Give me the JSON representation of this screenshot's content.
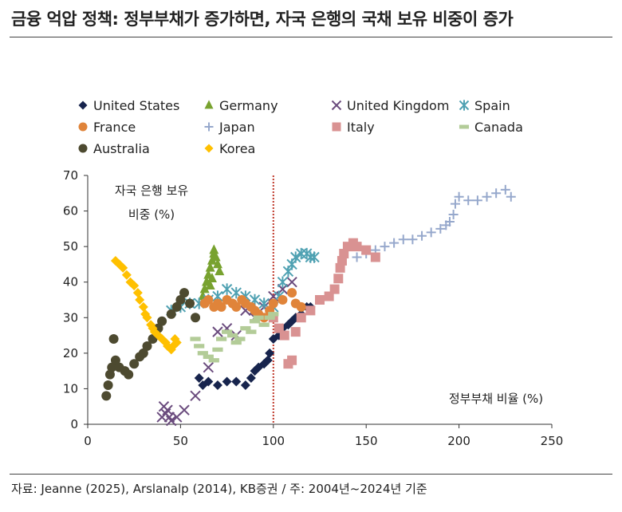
{
  "title": "금융 억압 정책: 정부부채가 증가하면, 자국 은행의 국채 보유 비중이 증가",
  "source": "자료: Jeanne (2025), Arslanalp (2014), KB증권 / 주: 2004년~2024년 기준",
  "chart_data": {
    "type": "scatter",
    "title": "금융 억압 정책: 정부부채가 증가하면, 자국 은행의 국채 보유 비중이 증가",
    "xlabel": "정부부채 비율 (%)",
    "ylabel": "자국 은행 보유 비중 (%)",
    "xlim": [
      0,
      250
    ],
    "ylim": [
      0,
      70
    ],
    "xticks": [
      0,
      50,
      100,
      150,
      200,
      250
    ],
    "yticks": [
      0,
      10,
      20,
      30,
      40,
      50,
      60,
      70
    ],
    "reference_line": {
      "x": 100,
      "color": "#c0392b",
      "style": "dotted"
    },
    "legend_placement": "top",
    "series": [
      {
        "name": "United States",
        "marker": "diamond",
        "color": "#17244d",
        "x": [
          60,
          62,
          65,
          70,
          75,
          80,
          85,
          88,
          90,
          92,
          95,
          97,
          98,
          100,
          103,
          105,
          108,
          110,
          112,
          115,
          118,
          120
        ],
        "y": [
          13,
          11,
          12,
          11,
          12,
          12,
          11,
          13,
          15,
          16,
          17,
          18,
          20,
          24,
          25,
          27,
          28,
          29,
          30,
          31,
          33,
          33
        ]
      },
      {
        "name": "Germany",
        "marker": "triangle",
        "color": "#78a22f",
        "x": [
          62,
          63,
          64,
          65,
          66,
          67,
          68,
          68,
          69,
          70,
          71,
          67,
          66
        ],
        "y": [
          36,
          38,
          40,
          42,
          44,
          46,
          48,
          49,
          47,
          45,
          43,
          41,
          39
        ]
      },
      {
        "name": "United Kingdom",
        "marker": "x",
        "color": "#6b4c7e",
        "x": [
          40,
          41,
          42,
          43,
          44,
          45,
          48,
          52,
          58,
          65,
          70,
          75,
          80,
          85,
          90,
          95,
          100,
          105,
          110
        ],
        "y": [
          2,
          5,
          3,
          4,
          2,
          1,
          2,
          4,
          8,
          16,
          26,
          27,
          25,
          32,
          30,
          33,
          36,
          38,
          40
        ]
      },
      {
        "name": "Spain",
        "marker": "asterisk",
        "color": "#4fa1b2",
        "x": [
          45,
          50,
          55,
          60,
          65,
          70,
          75,
          80,
          85,
          90,
          95,
          100,
          103,
          105,
          108,
          110,
          112,
          115,
          118,
          120,
          122
        ],
        "y": [
          32,
          33,
          34,
          34,
          35,
          36,
          38,
          37,
          36,
          35,
          34,
          33,
          36,
          40,
          43,
          45,
          47,
          48,
          48,
          47,
          47
        ]
      },
      {
        "name": "France",
        "marker": "circle",
        "color": "#e0843a",
        "x": [
          63,
          65,
          68,
          70,
          72,
          75,
          78,
          80,
          83,
          85,
          88,
          90,
          92,
          95,
          98,
          100,
          105,
          110,
          112,
          115
        ],
        "y": [
          34,
          35,
          33,
          34,
          33,
          35,
          34,
          33,
          35,
          34,
          33,
          32,
          31,
          30,
          32,
          34,
          35,
          37,
          34,
          33
        ]
      },
      {
        "name": "Japan",
        "marker": "plus",
        "color": "#96a8cc",
        "x": [
          145,
          150,
          155,
          160,
          165,
          170,
          175,
          180,
          185,
          190,
          193,
          195,
          197,
          198,
          200,
          205,
          210,
          215,
          220,
          225,
          228
        ],
        "y": [
          47,
          48,
          49,
          50,
          51,
          52,
          52,
          53,
          54,
          55,
          56,
          57,
          59,
          62,
          64,
          63,
          63,
          64,
          65,
          66,
          64
        ]
      },
      {
        "name": "Italy",
        "marker": "square",
        "color": "#d99292",
        "x": [
          100,
          103,
          106,
          108,
          110,
          112,
          115,
          120,
          125,
          130,
          133,
          135,
          136,
          137,
          138,
          140,
          143,
          145,
          150,
          155
        ],
        "y": [
          30,
          27,
          25,
          17,
          18,
          26,
          30,
          32,
          35,
          36,
          38,
          41,
          44,
          46,
          48,
          50,
          51,
          50,
          49,
          47
        ]
      },
      {
        "name": "Canada",
        "marker": "dash",
        "color": "#b3cc98",
        "x": [
          58,
          60,
          62,
          65,
          68,
          70,
          72,
          75,
          78,
          80,
          82,
          85,
          88,
          90,
          92,
          95,
          98,
          100
        ],
        "y": [
          24,
          22,
          20,
          19,
          18,
          21,
          24,
          26,
          25,
          23,
          24,
          27,
          26,
          29,
          30,
          28,
          30,
          31
        ]
      },
      {
        "name": "Australia",
        "marker": "circle",
        "color": "#4d4a30",
        "x": [
          10,
          11,
          12,
          13,
          14,
          15,
          17,
          20,
          22,
          25,
          28,
          30,
          32,
          35,
          38,
          40,
          45,
          48,
          50,
          52,
          55,
          58
        ],
        "y": [
          8,
          11,
          14,
          16,
          24,
          18,
          16,
          15,
          14,
          17,
          19,
          20,
          22,
          24,
          27,
          29,
          31,
          33,
          35,
          37,
          34,
          30
        ]
      },
      {
        "name": "Korea",
        "marker": "diamond",
        "color": "#ffc000",
        "x": [
          15,
          17,
          19,
          21,
          23,
          25,
          27,
          28,
          30,
          31,
          32,
          34,
          35,
          36,
          38,
          40,
          42,
          43,
          45,
          46,
          47,
          48
        ],
        "y": [
          46,
          45,
          44,
          42,
          40,
          39,
          37,
          35,
          33,
          31,
          30,
          28,
          27,
          26,
          25,
          24,
          23,
          22,
          21,
          22,
          24,
          23
        ]
      }
    ],
    "annotations": [
      {
        "text_lines": [
          "자국 은행 보유",
          "비중 (%)"
        ]
      },
      {
        "text_lines": [
          "정부부채 비율 (%)"
        ]
      }
    ]
  }
}
